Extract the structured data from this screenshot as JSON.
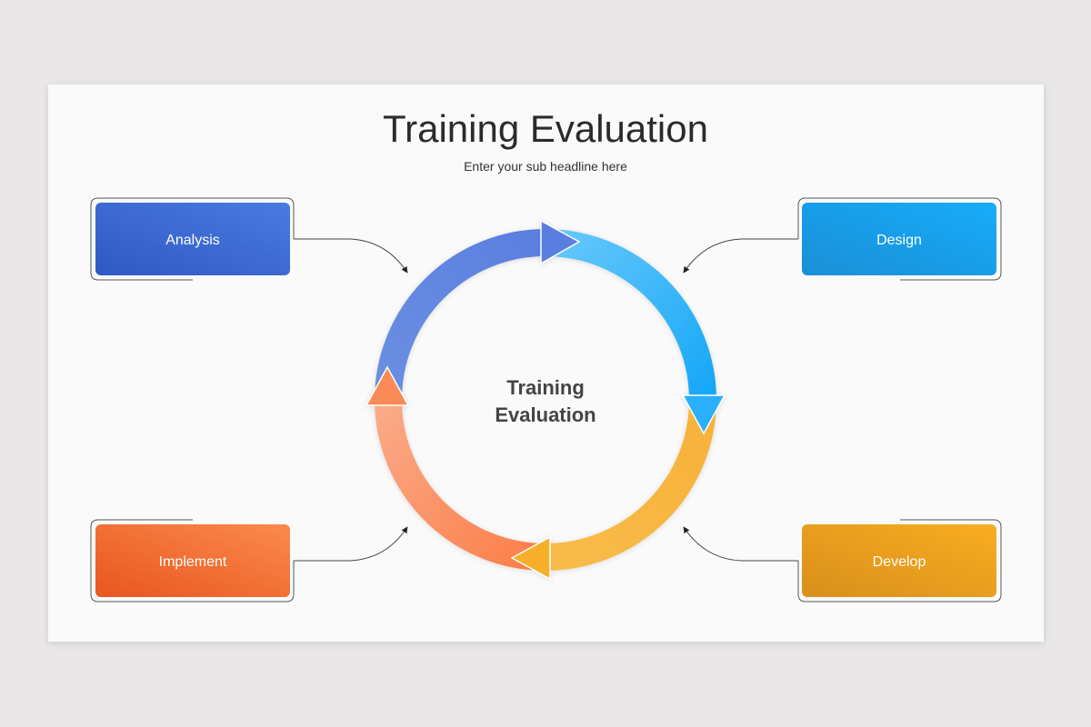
{
  "slide": {
    "title": "Training Evaluation",
    "subtitle": "Enter your sub headline here",
    "center_label_line1": "Training",
    "center_label_line2": "Evaluation"
  },
  "stages": [
    {
      "label": "Analysis",
      "color_start": "#3058c4",
      "color_end": "#4a7be0"
    },
    {
      "label": "Design",
      "color_start": "#1a8fd6",
      "color_end": "#17acfa"
    },
    {
      "label": "Develop",
      "color_start": "#d88f1c",
      "color_end": "#f9ad20"
    },
    {
      "label": "Implement",
      "color_start": "#e8561f",
      "color_end": "#fb8a4c"
    }
  ],
  "ring_colors": {
    "blue": "#5d86e0",
    "light_blue": "#22aefa",
    "yellow": "#f8b43c",
    "orange": "#fa8d5a"
  }
}
